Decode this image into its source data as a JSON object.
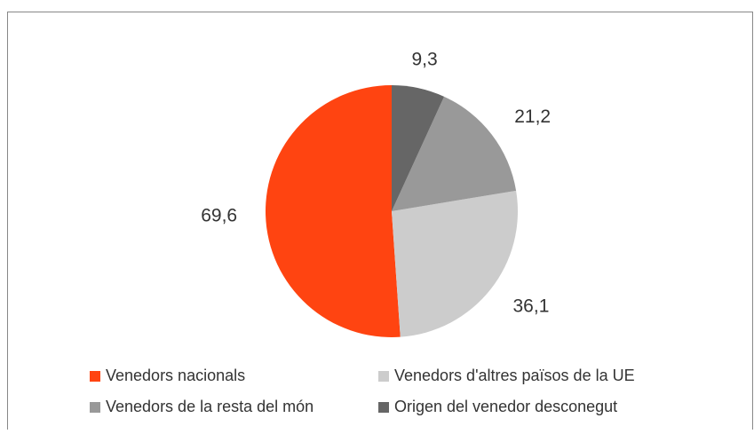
{
  "chart_data": {
    "type": "pie",
    "categories": [
      "Venedors nacionals",
      "Venedors d'altres països de la UE",
      "Venedors de la resta del món",
      "Origen del venedor desconegut"
    ],
    "values": [
      69.6,
      36.1,
      21.2,
      9.3
    ],
    "value_labels": [
      "69,6",
      "36,1",
      "21,2",
      "9,3"
    ],
    "colors": [
      "#ff4411",
      "#cccccc",
      "#999999",
      "#666666"
    ],
    "legend": "bottom"
  }
}
